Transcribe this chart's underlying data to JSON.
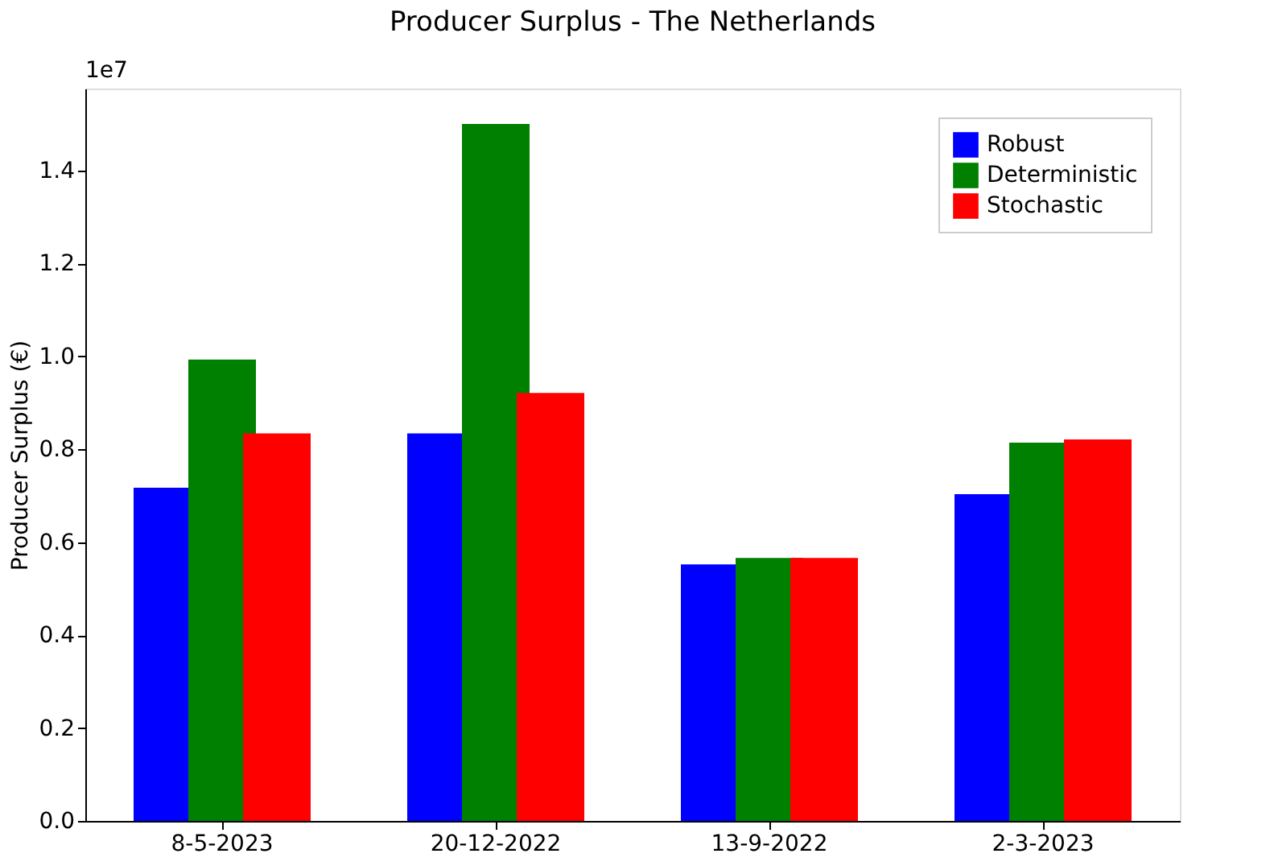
{
  "chart_data": {
    "type": "bar",
    "title": "Producer Surplus - The Netherlands",
    "ylabel": "Producer Surplus (€)",
    "categories": [
      "8-5-2023",
      "20-12-2022",
      "13-9-2022",
      "2-3-2023"
    ],
    "series": [
      {
        "name": "Robust",
        "color": "#0000ff",
        "values": [
          0.717,
          0.834,
          0.552,
          0.703
        ]
      },
      {
        "name": "Deterministic",
        "color": "#008000",
        "values": [
          0.993,
          1.5,
          0.566,
          0.814
        ]
      },
      {
        "name": "Stochastic",
        "color": "#ff0000",
        "values": [
          0.834,
          0.921,
          0.566,
          0.821
        ]
      }
    ],
    "ylim": [
      0,
      1.576
    ],
    "yticks": [
      {
        "value": 0,
        "label": "0.0"
      },
      {
        "value": 0.2,
        "label": "0.2"
      },
      {
        "value": 0.4,
        "label": "0.4"
      },
      {
        "value": 0.6,
        "label": "0.6"
      },
      {
        "value": 0.8,
        "label": "0.8"
      },
      {
        "value": 1.0,
        "label": "1.0"
      },
      {
        "value": 1.2,
        "label": "1.2"
      },
      {
        "value": 1.4,
        "label": "1.4"
      }
    ],
    "annotations": [
      "1e7"
    ],
    "legend": "top right",
    "grid": false
  }
}
